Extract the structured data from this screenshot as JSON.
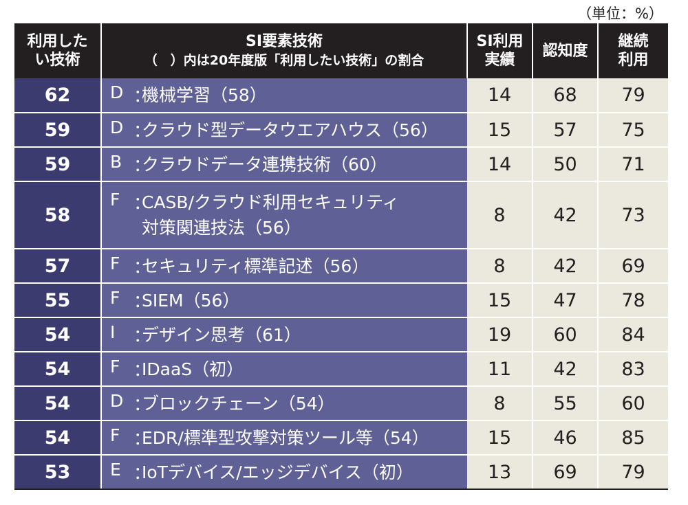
{
  "unit_note": "（単位：%）",
  "headers": {
    "rank": [
      "利用した",
      "い技術"
    ],
    "tech_main": "SI要素技術",
    "tech_sub": "（　）内は20年度版「利用したい技術」の割合",
    "si_usage": [
      "SI利用",
      "実績"
    ],
    "awareness": "認知度",
    "continued": [
      "継続",
      "利用"
    ]
  },
  "rows": [
    {
      "rank": "62",
      "cat": "D",
      "name": [
        "機械学習（58）"
      ],
      "si": "14",
      "aware": "68",
      "cont": "79"
    },
    {
      "rank": "59",
      "cat": "D",
      "name": [
        "クラウド型データウエアハウス（56）"
      ],
      "si": "15",
      "aware": "57",
      "cont": "75"
    },
    {
      "rank": "59",
      "cat": "B",
      "name": [
        "クラウドデータ連携技術（60）"
      ],
      "si": "14",
      "aware": "50",
      "cont": "71"
    },
    {
      "rank": "58",
      "cat": "F",
      "name": [
        "CASB/クラウド利用セキュリティ",
        "対策関連技法（56）"
      ],
      "si": "8",
      "aware": "42",
      "cont": "73"
    },
    {
      "rank": "57",
      "cat": "F",
      "name": [
        "セキュリティ標準記述（56）"
      ],
      "si": "8",
      "aware": "42",
      "cont": "69"
    },
    {
      "rank": "55",
      "cat": "F",
      "name": [
        "SIEM（56）"
      ],
      "si": "15",
      "aware": "47",
      "cont": "78"
    },
    {
      "rank": "54",
      "cat": "I",
      "name": [
        "デザイン思考（61）"
      ],
      "si": "19",
      "aware": "60",
      "cont": "84"
    },
    {
      "rank": "54",
      "cat": "F",
      "name": [
        "IDaaS（初）"
      ],
      "si": "11",
      "aware": "42",
      "cont": "83"
    },
    {
      "rank": "54",
      "cat": "D",
      "name": [
        "ブロックチェーン（54）"
      ],
      "si": "8",
      "aware": "55",
      "cont": "60"
    },
    {
      "rank": "54",
      "cat": "F",
      "name": [
        "EDR/標準型攻撃対策ツール等（54）"
      ],
      "si": "15",
      "aware": "46",
      "cont": "85"
    },
    {
      "rank": "53",
      "cat": "E",
      "name": [
        "IoTデバイス/エッジデバイス（初）"
      ],
      "si": "13",
      "aware": "69",
      "cont": "79"
    }
  ],
  "colors": {
    "header_bg": "#231f20",
    "rank_bg": "#3c3b6f",
    "tech_bg": "#5f6096",
    "num_bg": "#ebe9de"
  }
}
